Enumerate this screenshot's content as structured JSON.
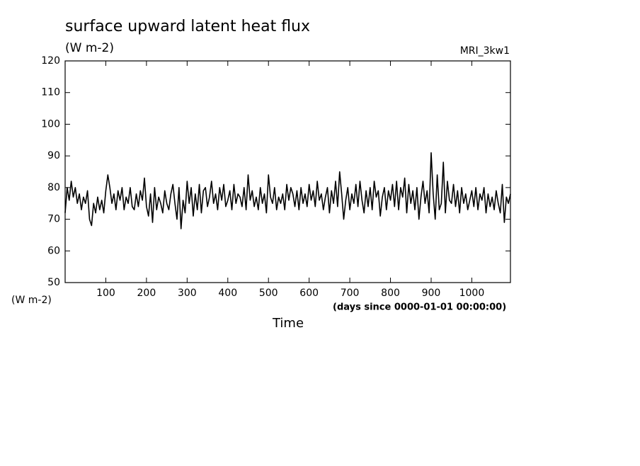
{
  "chart_data": {
    "type": "line",
    "title": "surface upward latent heat flux",
    "units": "(W m-2)",
    "source": "MRI_3kw1",
    "y_axis_label": "(W m-2)",
    "x_axis_note": "(days since 0000-01-01 00:00:00)",
    "x_axis_label": "Time",
    "color": "#000000",
    "xlim": [
      0,
      1095
    ],
    "xticks": [
      100,
      200,
      300,
      400,
      500,
      600,
      700,
      800,
      900,
      1000
    ],
    "ylim": [
      50,
      120
    ],
    "yticks": [
      50,
      60,
      70,
      80,
      90,
      100,
      110,
      120
    ],
    "x": [
      0,
      5,
      10,
      15,
      20,
      25,
      30,
      35,
      40,
      45,
      50,
      55,
      60,
      65,
      70,
      75,
      80,
      85,
      90,
      95,
      100,
      105,
      110,
      115,
      120,
      125,
      130,
      135,
      140,
      145,
      150,
      155,
      160,
      165,
      170,
      175,
      180,
      185,
      190,
      195,
      200,
      205,
      210,
      215,
      220,
      225,
      230,
      235,
      240,
      245,
      250,
      255,
      260,
      265,
      270,
      275,
      280,
      285,
      290,
      295,
      300,
      305,
      310,
      315,
      320,
      325,
      330,
      335,
      340,
      345,
      350,
      355,
      360,
      365,
      370,
      375,
      380,
      385,
      390,
      395,
      400,
      405,
      410,
      415,
      420,
      425,
      430,
      435,
      440,
      445,
      450,
      455,
      460,
      465,
      470,
      475,
      480,
      485,
      490,
      495,
      500,
      505,
      510,
      515,
      520,
      525,
      530,
      535,
      540,
      545,
      550,
      555,
      560,
      565,
      570,
      575,
      580,
      585,
      590,
      595,
      600,
      605,
      610,
      615,
      620,
      625,
      630,
      635,
      640,
      645,
      650,
      655,
      660,
      665,
      670,
      675,
      680,
      685,
      690,
      695,
      700,
      705,
      710,
      715,
      720,
      725,
      730,
      735,
      740,
      745,
      750,
      755,
      760,
      765,
      770,
      775,
      780,
      785,
      790,
      795,
      800,
      805,
      810,
      815,
      820,
      825,
      830,
      835,
      840,
      845,
      850,
      855,
      860,
      865,
      870,
      875,
      880,
      885,
      890,
      895,
      900,
      905,
      910,
      915,
      920,
      925,
      930,
      935,
      940,
      945,
      950,
      955,
      960,
      965,
      970,
      975,
      980,
      985,
      990,
      995,
      1000,
      1005,
      1010,
      1015,
      1020,
      1025,
      1030,
      1035,
      1040,
      1045,
      1050,
      1055,
      1060,
      1065,
      1070,
      1075,
      1080,
      1085,
      1090,
      1095
    ],
    "values": [
      72,
      80,
      76,
      82,
      77,
      80,
      75,
      78,
      73,
      77,
      75,
      79,
      70,
      68,
      75,
      72,
      77,
      73,
      76,
      72,
      79,
      84,
      80,
      75,
      78,
      73,
      79,
      76,
      80,
      73,
      77,
      75,
      80,
      74,
      73,
      78,
      74,
      79,
      76,
      83,
      74,
      71,
      78,
      69,
      80,
      73,
      77,
      75,
      72,
      79,
      75,
      73,
      78,
      81,
      75,
      70,
      80,
      67,
      76,
      72,
      82,
      75,
      80,
      71,
      78,
      73,
      81,
      72,
      79,
      80,
      74,
      77,
      82,
      75,
      78,
      73,
      80,
      76,
      81,
      74,
      76,
      79,
      73,
      81,
      75,
      78,
      77,
      74,
      80,
      73,
      84,
      76,
      79,
      74,
      77,
      73,
      80,
      75,
      78,
      72,
      84,
      77,
      75,
      80,
      73,
      77,
      75,
      78,
      73,
      81,
      76,
      80,
      78,
      74,
      79,
      73,
      80,
      75,
      78,
      74,
      81,
      76,
      79,
      74,
      82,
      76,
      78,
      73,
      77,
      80,
      72,
      79,
      75,
      82,
      74,
      85,
      78,
      70,
      76,
      80,
      73,
      78,
      75,
      81,
      74,
      82,
      76,
      72,
      79,
      74,
      80,
      73,
      82,
      77,
      79,
      71,
      77,
      80,
      73,
      79,
      76,
      81,
      74,
      82,
      73,
      80,
      77,
      83,
      72,
      81,
      75,
      79,
      73,
      80,
      70,
      77,
      82,
      75,
      79,
      72,
      91,
      78,
      70,
      84,
      73,
      75,
      88,
      72,
      82,
      76,
      75,
      81,
      74,
      79,
      72,
      80,
      75,
      78,
      73,
      76,
      79,
      74,
      80,
      73,
      78,
      76,
      80,
      72,
      78,
      74,
      77,
      73,
      79,
      75,
      72,
      81,
      69,
      77,
      75,
      78
    ]
  }
}
